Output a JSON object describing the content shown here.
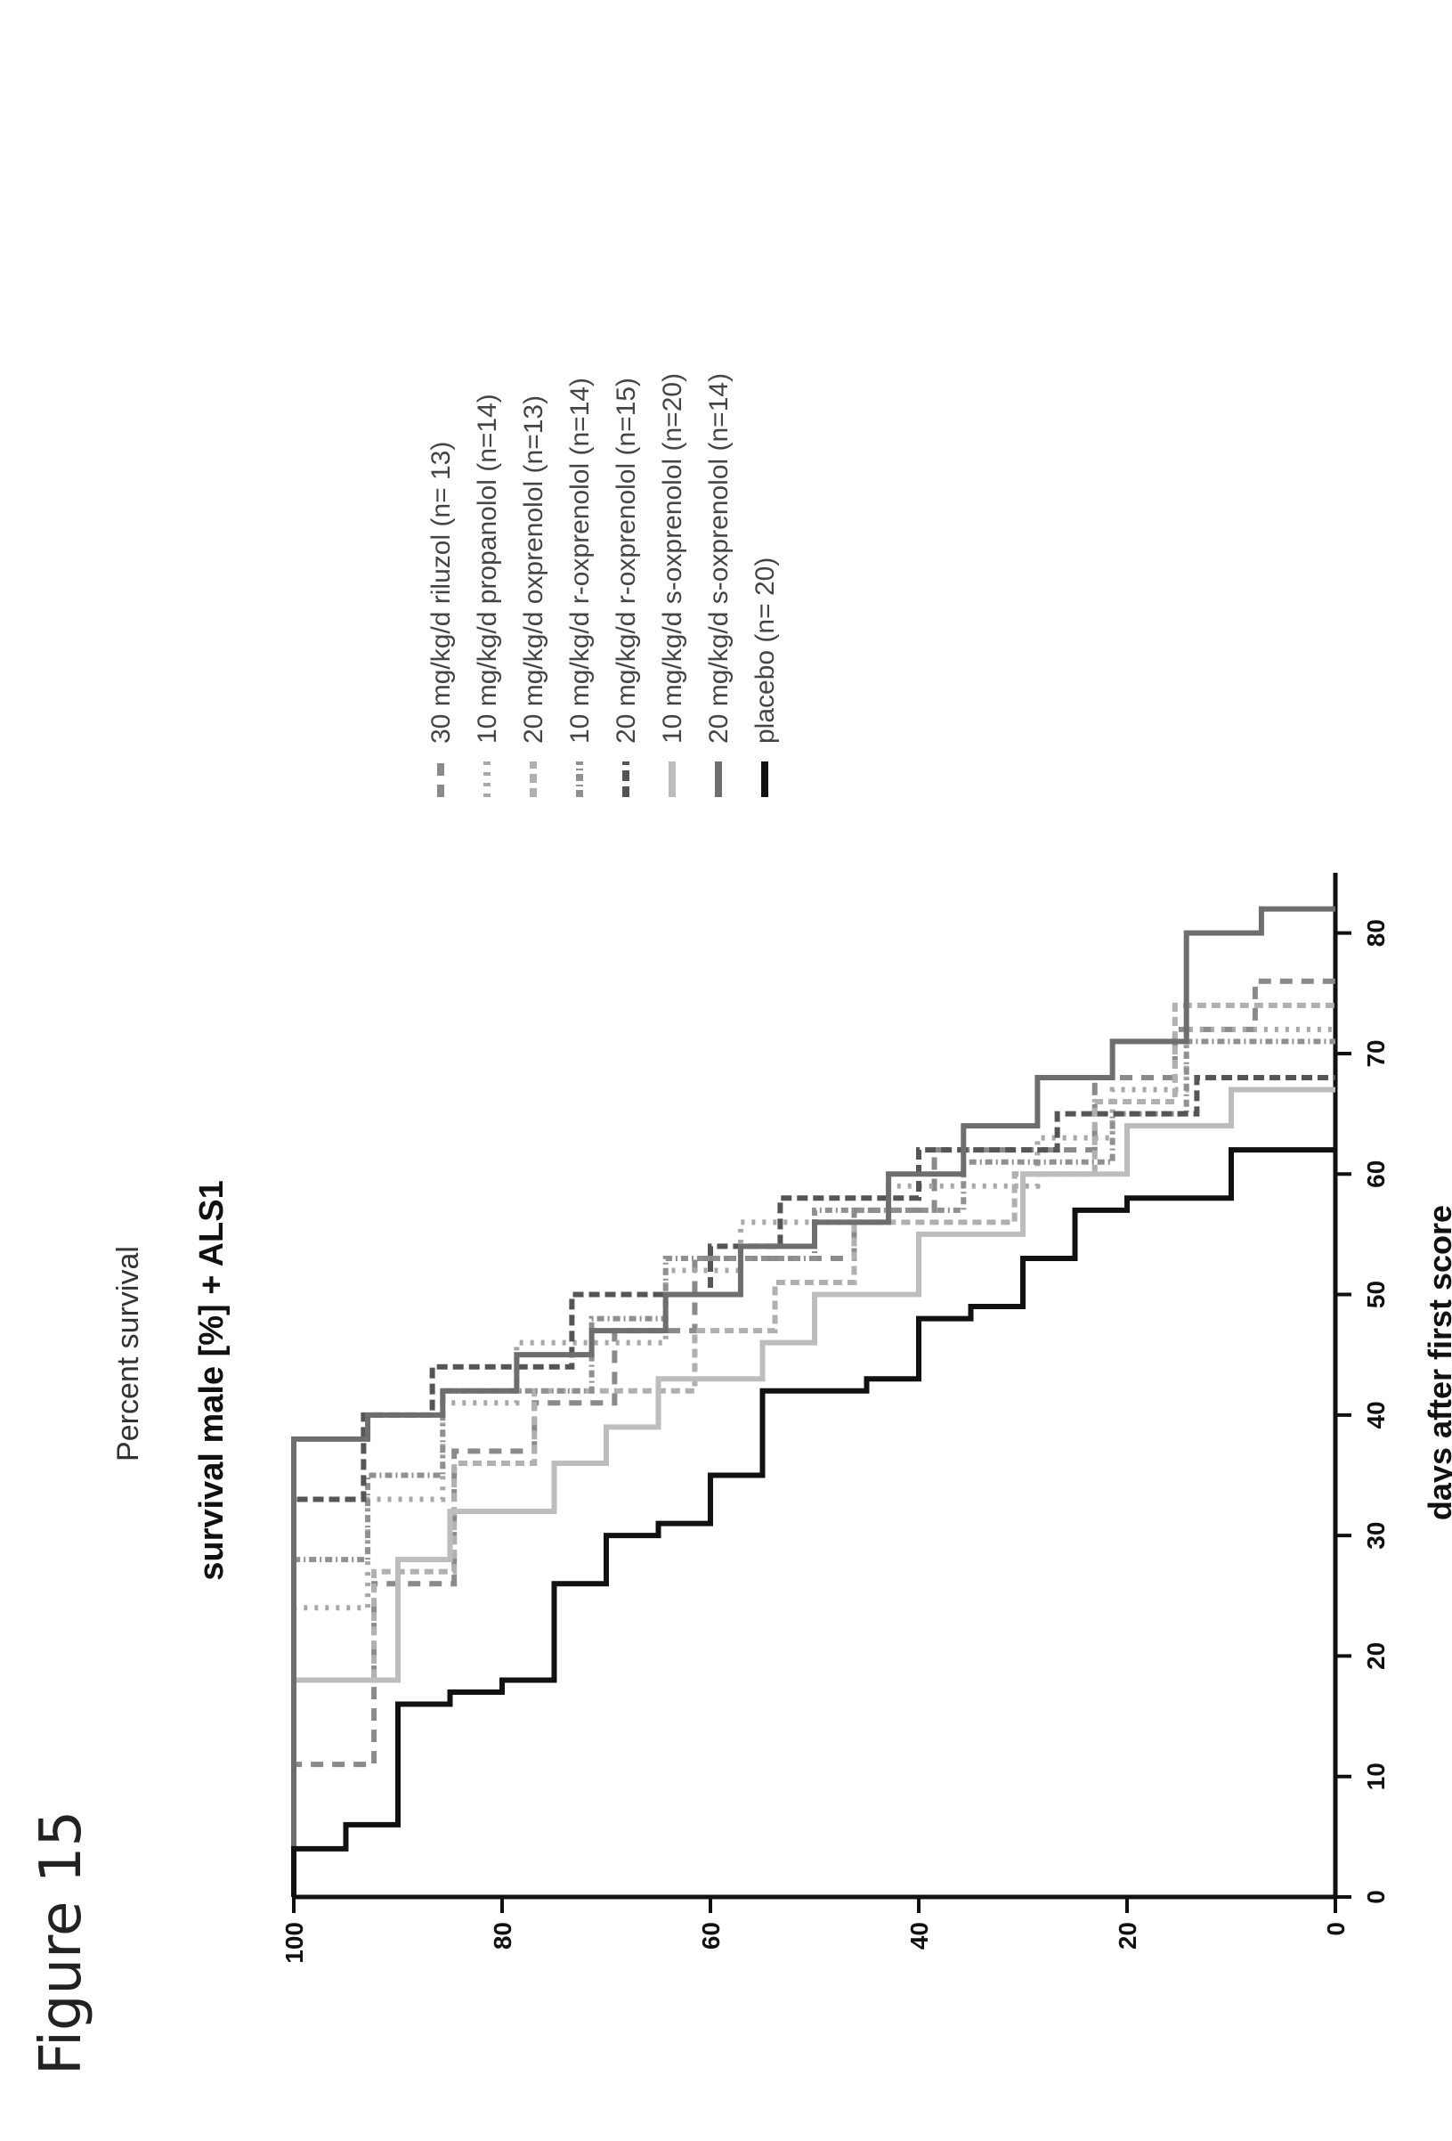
{
  "figure_label": "Figure 15",
  "chart_data": {
    "type": "line",
    "step": true,
    "title": "survival male [%] + ALS1",
    "xlabel": "days after first score",
    "ylabel": "Percent survival",
    "xlim": [
      0,
      85
    ],
    "ylim": [
      0,
      100
    ],
    "x_ticks": [
      0,
      10,
      20,
      30,
      40,
      50,
      60,
      70,
      80
    ],
    "y_ticks": [
      0,
      20,
      40,
      60,
      80,
      100
    ],
    "legend_position": "right",
    "series": [
      {
        "name": "30 mg/kg/d riluzol (n= 13)",
        "color": "#8a8a8a",
        "dash": "14,10",
        "x": [
          0,
          11,
          26,
          37,
          41,
          47,
          53,
          57,
          62,
          68,
          72,
          76
        ],
        "y": [
          100,
          92.3,
          84.6,
          76.9,
          69.2,
          61.5,
          46.2,
          38.5,
          23.1,
          15.4,
          7.7,
          0
        ]
      },
      {
        "name": "10 mg/kg/d propanolol (n=14)",
        "color": "#a8a8a8",
        "dash": "4,8",
        "x": [
          0,
          24,
          33,
          41,
          46,
          52,
          56,
          59,
          63,
          67,
          72
        ],
        "y": [
          100,
          92.9,
          85.7,
          78.6,
          64.3,
          57.1,
          42.9,
          28.6,
          21.4,
          14.3,
          0
        ]
      },
      {
        "name": "20 mg/kg/d oxprenolol (n=13)",
        "color": "#b0b0b0",
        "dash": "10,6",
        "x": [
          0,
          18,
          27,
          36,
          42,
          47,
          51,
          56,
          60,
          66,
          74
        ],
        "y": [
          100,
          92.3,
          84.6,
          76.9,
          61.5,
          53.8,
          46.2,
          30.8,
          23.1,
          15.4,
          0
        ]
      },
      {
        "name": "10 mg/kg/d r-oxprenolol (n=14)",
        "color": "#909090",
        "dash": "8,4,2,4",
        "x": [
          0,
          28,
          35,
          42,
          48,
          53,
          57,
          61,
          65,
          71
        ],
        "y": [
          100,
          92.9,
          85.7,
          71.4,
          64.3,
          50,
          35.7,
          21.4,
          14.3,
          0
        ]
      },
      {
        "name": "20 mg/kg/d r-oxprenolol (n=15)",
        "color": "#555555",
        "dash": "12,6",
        "x": [
          0,
          33,
          40,
          44,
          50,
          54,
          58,
          62,
          65,
          68
        ],
        "y": [
          100,
          93.3,
          86.7,
          73.3,
          60,
          53.3,
          40,
          26.7,
          13.3,
          0
        ]
      },
      {
        "name": "10 mg/kg/d s-oxprenolol (n=20)",
        "color": "#bdbdbd",
        "dash": "",
        "x": [
          0,
          18,
          28,
          32,
          36,
          39,
          43,
          46,
          50,
          55,
          60,
          64,
          67
        ],
        "y": [
          100,
          90,
          85,
          75,
          70,
          65,
          55,
          50,
          40,
          30,
          20,
          10,
          0
        ]
      },
      {
        "name": "20 mg/kg/d s-oxprenolol (n=14)",
        "color": "#6e6e6e",
        "dash": "",
        "x": [
          0,
          38,
          40,
          42,
          45,
          47,
          50,
          54,
          56,
          60,
          64,
          68,
          71,
          80,
          82
        ],
        "y": [
          100,
          92.9,
          85.7,
          78.6,
          71.4,
          64.3,
          57.1,
          50,
          42.9,
          35.7,
          28.6,
          21.4,
          14.3,
          7.1,
          0
        ]
      },
      {
        "name": "placebo (n= 20)",
        "color": "#111111",
        "dash": "",
        "x": [
          0,
          4,
          6,
          16,
          17,
          18,
          26,
          30,
          31,
          35,
          42,
          43,
          48,
          49,
          53,
          57,
          58,
          62
        ],
        "y": [
          100,
          95,
          90,
          85,
          80,
          75,
          70,
          65,
          60,
          55,
          45,
          40,
          35,
          30,
          25,
          20,
          10,
          0
        ]
      }
    ]
  }
}
